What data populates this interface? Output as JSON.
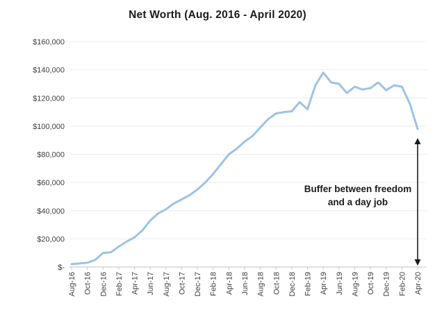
{
  "chart_data": {
    "type": "line",
    "title": "Net Worth (Aug. 2016 - April 2020)",
    "x": [
      "Aug-16",
      "Sep-16",
      "Oct-16",
      "Nov-16",
      "Dec-16",
      "Jan-17",
      "Feb-17",
      "Mar-17",
      "Apr-17",
      "May-17",
      "Jun-17",
      "Jul-17",
      "Aug-17",
      "Sep-17",
      "Oct-17",
      "Nov-17",
      "Dec-17",
      "Jan-18",
      "Feb-18",
      "Mar-18",
      "Apr-18",
      "May-18",
      "Jun-18",
      "Jul-18",
      "Aug-18",
      "Sep-18",
      "Oct-18",
      "Nov-18",
      "Dec-18",
      "Jan-19",
      "Feb-19",
      "Mar-19",
      "Apr-19",
      "May-19",
      "Jun-19",
      "Jul-19",
      "Aug-19",
      "Sep-19",
      "Oct-19",
      "Nov-19",
      "Dec-19",
      "Jan-20",
      "Feb-20",
      "Mar-20",
      "Apr-20"
    ],
    "values": [
      2000,
      2500,
      3000,
      5000,
      10000,
      10500,
      14500,
      18000,
      21000,
      26000,
      33000,
      38000,
      41000,
      45000,
      48000,
      51000,
      55000,
      60000,
      66000,
      73000,
      80000,
      84000,
      89000,
      93000,
      99000,
      105000,
      109000,
      110000,
      110500,
      117000,
      112000,
      129000,
      138000,
      131000,
      130000,
      123500,
      128000,
      126000,
      127000,
      131000,
      125500,
      129000,
      128000,
      116000,
      98000
    ],
    "x_tick_every": 2,
    "visible_x_ticks": [
      "Aug-16",
      "Oct-16",
      "Dec-16",
      "Feb-17",
      "Apr-17",
      "Jun-17",
      "Aug-17",
      "Oct-17",
      "Dec-17",
      "Feb-18",
      "Apr-18",
      "Jun-18",
      "Aug-18",
      "Oct-18",
      "Dec-18",
      "Feb-19",
      "Apr-19",
      "Jun-19",
      "Aug-19",
      "Oct-19",
      "Dec-19",
      "Feb-20",
      "Apr-20"
    ],
    "y_ticks": {
      "labels": [
        "$-",
        "$20,000",
        "$40,000",
        "$60,000",
        "$80,000",
        "$100,000",
        "$120,000",
        "$140,000",
        "$160,000"
      ],
      "values": [
        0,
        20000,
        40000,
        60000,
        80000,
        100000,
        120000,
        140000,
        160000
      ]
    },
    "ylim": [
      0,
      160000
    ],
    "xlabel": "",
    "ylabel": "",
    "grid": true,
    "legend": "none",
    "annotation_lines": [
      "Buffer between freedom",
      "and a day job"
    ],
    "arrow": {
      "x_category": "Apr-20",
      "from_value": 98000,
      "to_value": 0,
      "style": "double-headed-vertical"
    }
  },
  "colors": {
    "series_line": "#9DC3E6",
    "gridline": "#EDEDED",
    "axis_line": "#C0C0C0",
    "tick_mark": "#C9C9C9",
    "axis_label": "#404040",
    "title_text": "#1A1A1A",
    "annotation_text": "#1A1A1A",
    "arrow": "#1A1A1A",
    "background": "#FFFFFF"
  }
}
